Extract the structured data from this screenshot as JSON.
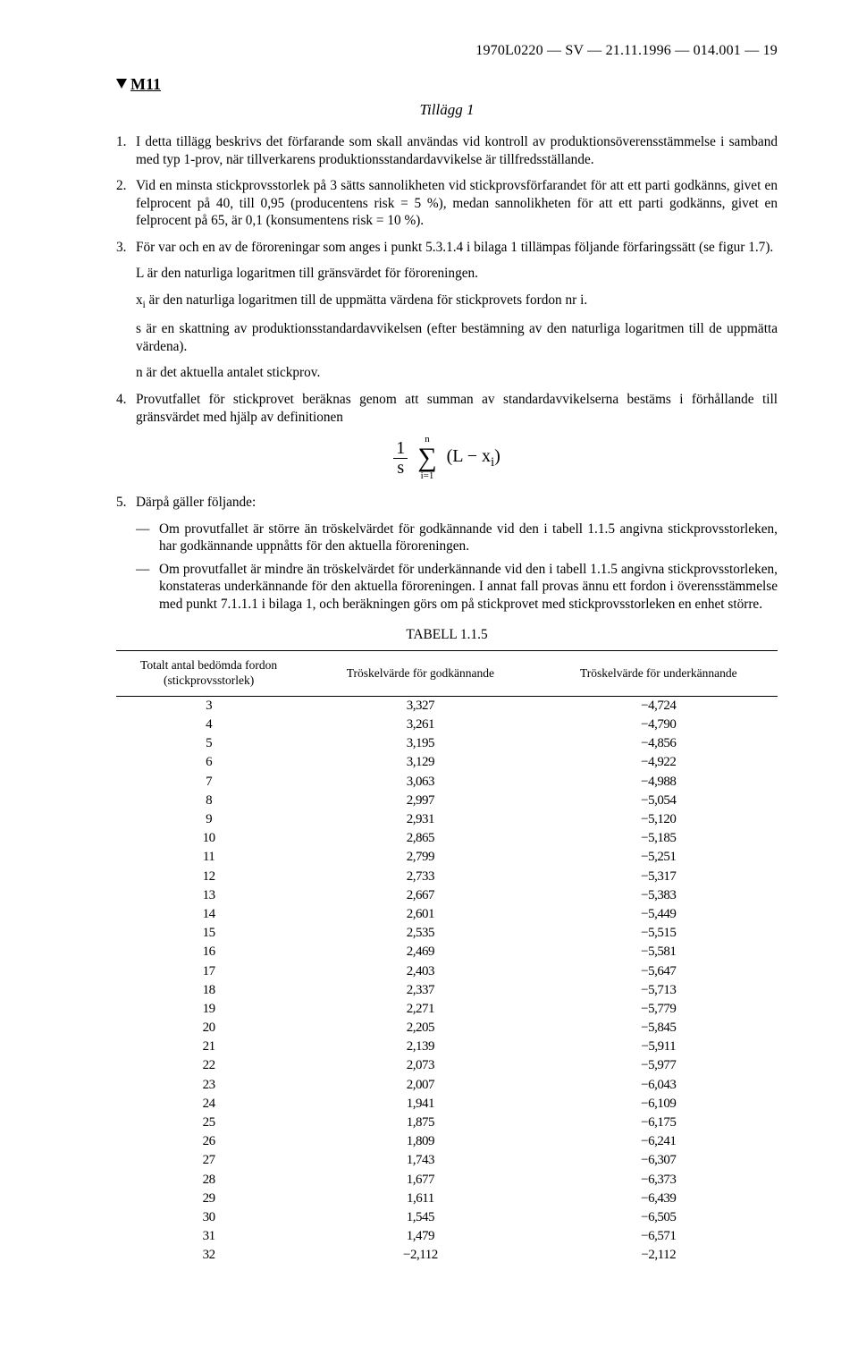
{
  "header": {
    "running": "1970L0220 — SV — 21.11.1996 — 014.001 — 19"
  },
  "marker": {
    "label": "M11"
  },
  "appendix": {
    "title": "Tillägg 1"
  },
  "paras": {
    "p1n": "1.",
    "p1": "I detta tillägg beskrivs det förfarande som skall användas vid kontroll av produktionsöverensstämmelse i samband med typ 1-prov, när tillverkarens produktionsstandardavvikelse är tillfredsställande.",
    "p2n": "2.",
    "p2": "Vid en minsta stickprovsstorlek på 3 sätts sannolikheten vid stickprovsförfarandet för att ett parti godkänns, givet en felprocent på 40, till 0,95 (producentens risk = 5 %), medan sannolikheten för att ett parti godkänns, givet en felprocent på 65, är 0,1 (konsumentens risk = 10 %).",
    "p3n": "3.",
    "p3": "För var och en av de föroreningar som anges i punkt 5.3.1.4 i bilaga 1 tillämpas följande förfaringssätt (se figur 1.7).",
    "s1": "L är den naturliga logaritmen till gränsvärdet för föroreningen.",
    "s2a": "x",
    "s2b": " är den naturliga logaritmen till de uppmätta värdena för stickprovets fordon nr i.",
    "s3": "s är en skattning av produktionsstandardavvikelsen (efter bestämning av den naturliga logaritmen till de uppmätta värdena).",
    "s4": "n är det aktuella antalet stickprov.",
    "p4n": "4.",
    "p4": "Provutfallet för stickprovet beräknas genom att summan av standardavvikelserna bestäms i förhållande till gränsvärdet med hjälp av definitionen",
    "p5n": "5.",
    "p5": "Därpå gäller följande:",
    "d1": "Om provutfallet är större än tröskelvärdet för godkännande vid den i tabell 1.1.5 angivna stickprovsstorleken, har godkännande uppnåtts för den aktuella föroreningen.",
    "d2": "Om provutfallet är mindre än tröskelvärdet för underkännande vid den i tabell 1.1.5 angivna stickprovsstorleken, konstateras underkännande för den aktuella föroreningen. I annat fall provas ännu ett fordon i överensstämmelse med punkt 7.1.1.1 i bilaga 1, och beräkningen görs om på stickprovet med stickprovsstorleken en enhet större."
  },
  "formula": {
    "frac_top": "1",
    "frac_bot": "s",
    "lim_top": "n",
    "lim_bot": "i=1",
    "arg1": "(L − x",
    "arg2": ")"
  },
  "table": {
    "title": "TABELL 1.1.5",
    "h1a": "Totalt antal bedömda fordon",
    "h1b": "(stickprovsstorlek)",
    "h2": "Tröskelvärde för godkännande",
    "h3": "Tröskelvärde för underkännande",
    "rows": [
      [
        "3",
        "3,327",
        "−4,724"
      ],
      [
        "4",
        "3,261",
        "−4,790"
      ],
      [
        "5",
        "3,195",
        "−4,856"
      ],
      [
        "6",
        "3,129",
        "−4,922"
      ],
      [
        "7",
        "3,063",
        "−4,988"
      ],
      [
        "8",
        "2,997",
        "−5,054"
      ],
      [
        "9",
        "2,931",
        "−5,120"
      ],
      [
        "10",
        "2,865",
        "−5,185"
      ],
      [
        "11",
        "2,799",
        "−5,251"
      ],
      [
        "12",
        "2,733",
        "−5,317"
      ],
      [
        "13",
        "2,667",
        "−5,383"
      ],
      [
        "14",
        "2,601",
        "−5,449"
      ],
      [
        "15",
        "2,535",
        "−5,515"
      ],
      [
        "16",
        "2,469",
        "−5,581"
      ],
      [
        "17",
        "2,403",
        "−5,647"
      ],
      [
        "18",
        "2,337",
        "−5,713"
      ],
      [
        "19",
        "2,271",
        "−5,779"
      ],
      [
        "20",
        "2,205",
        "−5,845"
      ],
      [
        "21",
        "2,139",
        "−5,911"
      ],
      [
        "22",
        "2,073",
        "−5,977"
      ],
      [
        "23",
        "2,007",
        "−6,043"
      ],
      [
        "24",
        "1,941",
        "−6,109"
      ],
      [
        "25",
        "1,875",
        "−6,175"
      ],
      [
        "26",
        "1,809",
        "−6,241"
      ],
      [
        "27",
        "1,743",
        "−6,307"
      ],
      [
        "28",
        "1,677",
        "−6,373"
      ],
      [
        "29",
        "1,611",
        "−6,439"
      ],
      [
        "30",
        "1,545",
        "−6,505"
      ],
      [
        "31",
        "1,479",
        "−6,571"
      ],
      [
        "32",
        "−2,112",
        "−2,112"
      ]
    ]
  }
}
